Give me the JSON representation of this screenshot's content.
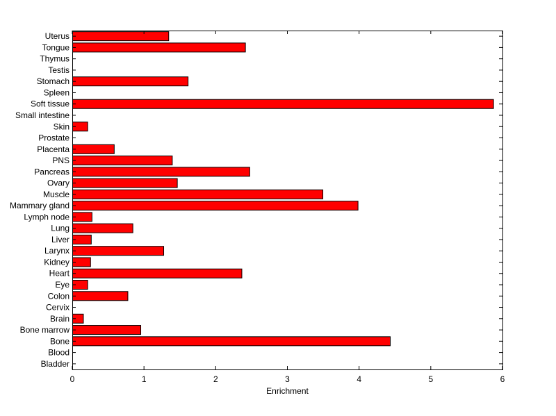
{
  "chart_data": {
    "type": "bar",
    "orientation": "horizontal",
    "xlabel": "Enrichment",
    "ylabel": "",
    "title": "",
    "xlim": [
      0,
      6
    ],
    "xticks": [
      0,
      1,
      2,
      3,
      4,
      5,
      6
    ],
    "grid": false,
    "legend": "none",
    "bar_color": "#ff0000",
    "bar_edge_color": "#000000",
    "categories": [
      "Uterus",
      "Tongue",
      "Thymus",
      "Testis",
      "Stomach",
      "Spleen",
      "Soft tissue",
      "Small intestine",
      "Skin",
      "Prostate",
      "Placenta",
      "PNS",
      "Pancreas",
      "Ovary",
      "Muscle",
      "Mammary gland",
      "Lymph node",
      "Lung",
      "Liver",
      "Larynx",
      "Kidney",
      "Heart",
      "Eye",
      "Colon",
      "Cervix",
      "Brain",
      "Bone marrow",
      "Bone",
      "Blood",
      "Bladder"
    ],
    "values": [
      1.34,
      2.41,
      0,
      0,
      1.61,
      0,
      5.87,
      0,
      0.21,
      0,
      0.58,
      1.39,
      2.47,
      1.46,
      3.49,
      3.98,
      0.27,
      0.84,
      0.26,
      1.27,
      0.25,
      2.36,
      0.21,
      0.77,
      0,
      0.15,
      0.95,
      4.43,
      0,
      0
    ]
  }
}
